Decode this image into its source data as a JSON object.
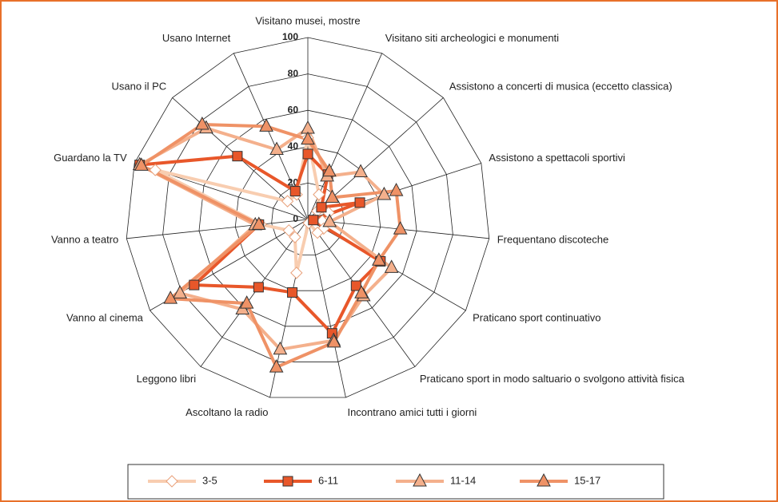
{
  "chart_data": {
    "type": "radar",
    "categories": [
      "Visitano musei, mostre",
      "Visitano siti archeologici e monumenti",
      "Assistono a concerti di musica (eccetto classica)",
      "Assistono a spettacoli sportivi",
      "Frequentano discoteche",
      "Praticano sport continuativo",
      "Praticano sport in modo saltuario o svolgono attività fisica",
      "Incontrano amici tutti i giorni",
      "Ascoltano la radio",
      "Leggono libri",
      "Vanno al cinema",
      "Vanno a teatro",
      "Guardano la TV",
      "Usano il PC",
      "Usano Internet"
    ],
    "series": [
      {
        "name": "3-5",
        "color": "#f8cdb0",
        "marker": "diamond",
        "values": [
          45,
          15,
          7,
          12,
          8,
          10,
          9,
          2,
          30,
          12,
          12,
          26,
          88,
          15,
          15
        ]
      },
      {
        "name": "6-11",
        "color": "#e8572a",
        "marker": "square",
        "values": [
          36,
          27,
          10,
          30,
          3,
          46,
          45,
          64,
          41,
          46,
          72,
          27,
          97,
          52,
          17
        ]
      },
      {
        "name": "11-14",
        "color": "#f4b08c",
        "marker": "triangle",
        "values": [
          50,
          26,
          39,
          44,
          12,
          53,
          52,
          68,
          73,
          61,
          81,
          29,
          97,
          75,
          42
        ]
      },
      {
        "name": "15-17",
        "color": "#ef9266",
        "marker": "triangle",
        "values": [
          44,
          29,
          18,
          51,
          51,
          45,
          50,
          69,
          83,
          57,
          87,
          27,
          96,
          78,
          56
        ]
      }
    ],
    "ylim": [
      0,
      100
    ],
    "yticks": [
      0,
      20,
      40,
      60,
      80,
      100
    ],
    "grid": true,
    "legend": "bottom"
  }
}
